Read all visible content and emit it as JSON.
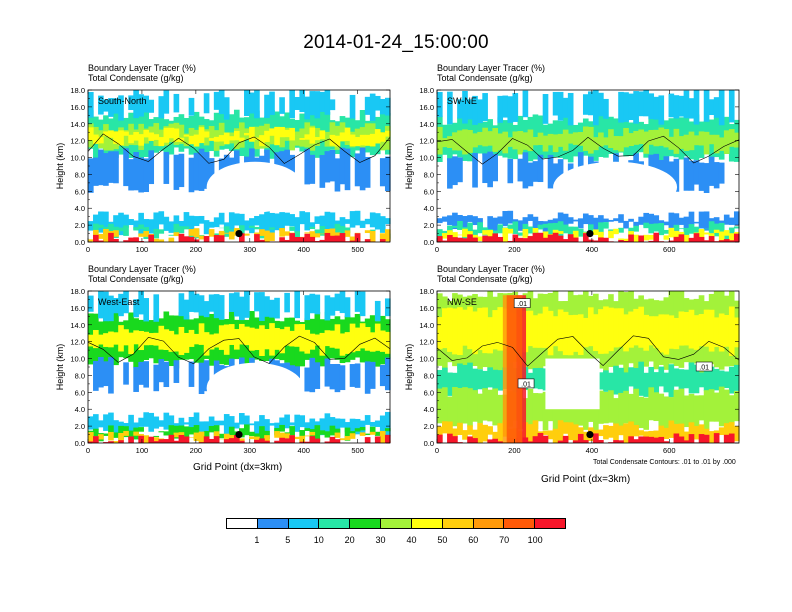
{
  "title": "2014-01-24_15:00:00",
  "x_axis_label": "Grid Point (dx=3km)",
  "contour_note": "Total Condensate Contours: .01 to .01 by .000",
  "colorbar": {
    "colors": [
      "#ffffff",
      "#2c8ff5",
      "#19c8f4",
      "#28e6a6",
      "#19d91e",
      "#a3f23a",
      "#ffff0f",
      "#ffce0d",
      "#ff9a0a",
      "#ff5a08",
      "#f7162a"
    ],
    "labels": [
      "1",
      "5",
      "10",
      "20",
      "30",
      "40",
      "50",
      "60",
      "70",
      "100"
    ]
  },
  "chart_data": [
    {
      "type": "heatmap",
      "panel_label": "South-North",
      "label_line1": "Boundary Layer Tracer   (%)",
      "label_line2": "Total Condensate   (g/kg)",
      "ylabel": "Height (km)",
      "xlim": [
        0,
        560
      ],
      "ylim": [
        0,
        18
      ],
      "xticks": [
        0,
        100,
        200,
        300,
        400,
        500
      ],
      "yticks": [
        "0.0",
        "2.0",
        "4.0",
        "6.0",
        "8.0",
        "10.0",
        "12.0",
        "14.0",
        "16.0",
        "18.0"
      ],
      "marker_x": 280,
      "marker_y": 1.0,
      "bands": [
        {
          "y0": 10.5,
          "y1": 15.0,
          "level": 3
        },
        {
          "y0": 11.5,
          "y1": 13.5,
          "level": 5
        },
        {
          "y0": 12.0,
          "y1": 13.0,
          "level": 6
        },
        {
          "y0": 15.0,
          "y1": 17.5,
          "level": 2
        },
        {
          "y0": 6.5,
          "y1": 10.5,
          "level": 1
        },
        {
          "y0": 1.5,
          "y1": 3.0,
          "level": 2
        },
        {
          "y0": 1.0,
          "y1": 1.5,
          "level": 3
        },
        {
          "y0": 0.4,
          "y1": 1.0,
          "level": 7
        },
        {
          "y0": 0.0,
          "y1": 0.4,
          "level": 10
        }
      ]
    },
    {
      "type": "heatmap",
      "panel_label": "SW-NE",
      "label_line1": "Boundary Layer Tracer   (%)",
      "label_line2": "Total Condensate   (g/kg)",
      "ylabel": "Height (km)",
      "xlim": [
        0,
        780
      ],
      "ylim": [
        0,
        18
      ],
      "xticks": [
        0,
        200,
        400,
        600
      ],
      "yticks": [
        "0.0",
        "2.0",
        "4.0",
        "6.0",
        "8.0",
        "10.0",
        "12.0",
        "14.0",
        "16.0",
        "18.0"
      ],
      "marker_x": 395,
      "marker_y": 1.0,
      "bands": [
        {
          "y0": 10.0,
          "y1": 14.5,
          "level": 3
        },
        {
          "y0": 11.0,
          "y1": 13.0,
          "level": 5
        },
        {
          "y0": 14.5,
          "y1": 17.5,
          "level": 2
        },
        {
          "y0": 6.5,
          "y1": 10.0,
          "level": 1
        },
        {
          "y0": 1.8,
          "y1": 3.0,
          "level": 1
        },
        {
          "y0": 1.0,
          "y1": 1.8,
          "level": 3
        },
        {
          "y0": 0.4,
          "y1": 1.0,
          "level": 6
        },
        {
          "y0": 0.0,
          "y1": 0.4,
          "level": 10
        }
      ]
    },
    {
      "type": "heatmap",
      "panel_label": "West-East",
      "label_line1": "Boundary Layer Tracer   (%)",
      "label_line2": "Total Condensate   (g/kg)",
      "ylabel": "Height (km)",
      "xlim": [
        0,
        560
      ],
      "ylim": [
        0,
        18
      ],
      "xticks": [
        0,
        100,
        200,
        300,
        400,
        500
      ],
      "yticks": [
        "0.0",
        "2.0",
        "4.0",
        "6.0",
        "8.0",
        "10.0",
        "12.0",
        "14.0",
        "16.0",
        "18.0"
      ],
      "marker_x": 280,
      "marker_y": 1.0,
      "bands": [
        {
          "y0": 9.5,
          "y1": 15.0,
          "level": 4
        },
        {
          "y0": 11.0,
          "y1": 13.5,
          "level": 6
        },
        {
          "y0": 15.0,
          "y1": 17.5,
          "level": 2
        },
        {
          "y0": 6.5,
          "y1": 9.5,
          "level": 1
        },
        {
          "y0": 1.5,
          "y1": 3.0,
          "level": 2
        },
        {
          "y0": 0.8,
          "y1": 1.5,
          "level": 4
        },
        {
          "y0": 0.3,
          "y1": 0.8,
          "level": 7
        },
        {
          "y0": 0.0,
          "y1": 0.3,
          "level": 10
        }
      ]
    },
    {
      "type": "heatmap",
      "panel_label": "NW-SE",
      "label_line1": "Boundary Layer Tracer   (%)",
      "label_line2": "Total Condensate   (g/kg)",
      "ylabel": "Height (km)",
      "xlim": [
        0,
        780
      ],
      "ylim": [
        0,
        18
      ],
      "xticks": [
        0,
        200,
        400,
        600
      ],
      "yticks": [
        "0.0",
        "2.0",
        "4.0",
        "6.0",
        "8.0",
        "10.0",
        "12.0",
        "14.0",
        "16.0",
        "18.0"
      ],
      "marker_x": 395,
      "marker_y": 1.0,
      "contour_labels": [
        ".01",
        ".01",
        ".01"
      ],
      "bands": [
        {
          "y0": 9.0,
          "y1": 17.5,
          "level": 5
        },
        {
          "y0": 11.0,
          "y1": 15.5,
          "level": 6
        },
        {
          "y0": 6.0,
          "y1": 9.0,
          "level": 3
        },
        {
          "y0": 2.0,
          "y1": 6.0,
          "level": 5
        },
        {
          "y0": 0.5,
          "y1": 2.0,
          "level": 7
        },
        {
          "y0": 0.0,
          "y1": 0.5,
          "level": 10
        }
      ]
    }
  ]
}
